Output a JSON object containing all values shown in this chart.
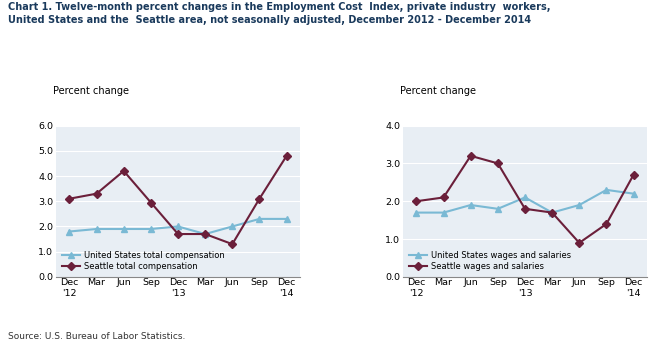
{
  "title_line1": "Chart 1. Twelve-month percent changes in the Employment Cost  Index, private industry  workers,",
  "title_line2": "United States and the  Seattle area, not seasonally adjusted, December 2012 - December 2014",
  "source": "Source: U.S. Bureau of Labor Statistics.",
  "x_labels": [
    "Dec\n'12",
    "Mar",
    "Jun",
    "Sep",
    "Dec\n'13",
    "Mar",
    "Jun",
    "Sep",
    "Dec\n'14"
  ],
  "left_chart": {
    "ylabel": "Percent change",
    "ylim": [
      0.0,
      6.0
    ],
    "yticks": [
      0.0,
      1.0,
      2.0,
      3.0,
      4.0,
      5.0,
      6.0
    ],
    "us_total_comp": [
      1.8,
      1.9,
      1.9,
      1.9,
      2.0,
      1.7,
      2.0,
      2.3,
      2.3
    ],
    "seattle_total_comp": [
      3.1,
      3.3,
      4.2,
      2.95,
      1.7,
      1.7,
      1.3,
      3.1,
      4.8
    ],
    "legend_us": "United States total compensation",
    "legend_seattle": "Seattle total compensation"
  },
  "right_chart": {
    "ylabel": "Percent change",
    "ylim": [
      0.0,
      4.0
    ],
    "yticks": [
      0.0,
      1.0,
      2.0,
      3.0,
      4.0
    ],
    "us_wages": [
      1.7,
      1.7,
      1.9,
      1.8,
      2.1,
      1.7,
      1.9,
      2.3,
      2.2
    ],
    "seattle_wages": [
      2.0,
      2.1,
      3.2,
      3.0,
      1.8,
      1.7,
      0.9,
      1.4,
      2.7
    ],
    "legend_us": "United States wages and salaries",
    "legend_seattle": "Seattle wages and salaries"
  },
  "us_color": "#7ab9d4",
  "seattle_color": "#6b1f3a",
  "marker_us": "^",
  "marker_seattle": "D",
  "linewidth": 1.5,
  "markersize": 4,
  "bg_color": "#e8eef4"
}
